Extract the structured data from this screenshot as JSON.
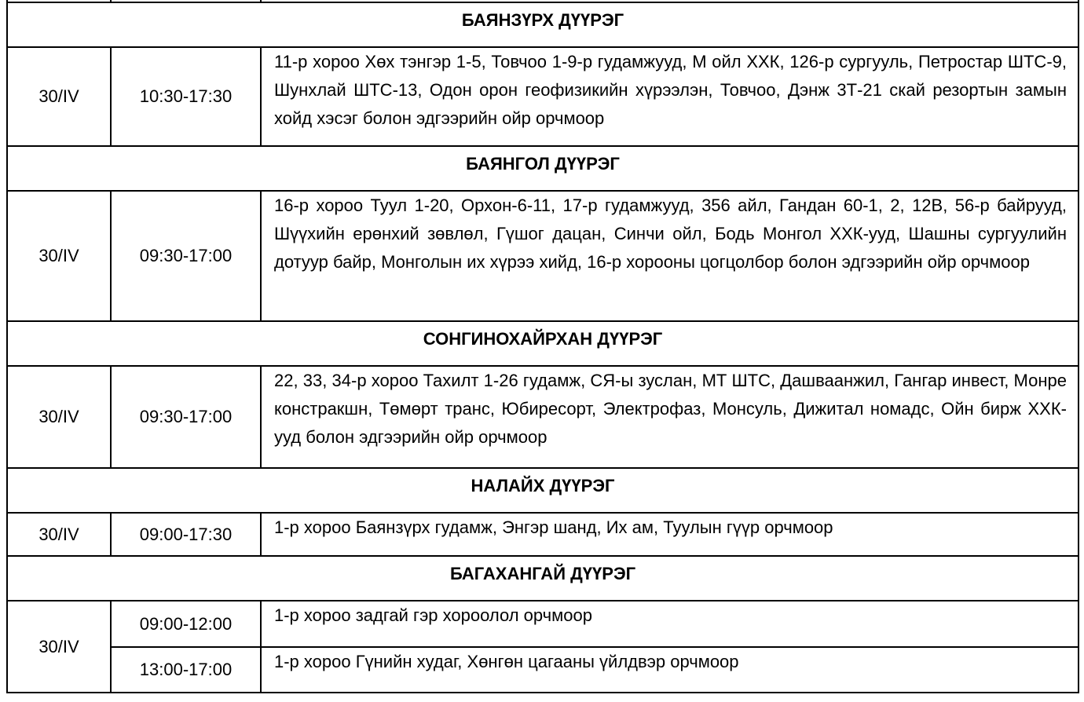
{
  "sections": [
    {
      "district": "БАЯНЗҮРХ ДҮҮРЭГ",
      "rows": [
        {
          "date": "30/IV",
          "time": "10:30-17:30",
          "height": 126,
          "desc": "11-р хороо Хөх тэнгэр 1-5, Товчоо 1-9-р гудамжууд, М ойл ХХК, 126-р сургууль, Петростар ШТС-9, Шунхлай ШТС-13, Одон орон геофизикийн хүрээлэн, Товчоо, Дэнж 3Т-21 скай резортын замын хойд хэсэг болон эдгээрийн ойр орчмоор"
        }
      ]
    },
    {
      "district": "БАЯНГОЛ ДҮҮРЭГ",
      "rows": [
        {
          "date": "30/IV",
          "time": "09:30-17:00",
          "height": 166,
          "desc": "16-р хороо Туул 1-20, Орхон-6-11, 17-р гудамжууд, 356 айл, Гандан 60-1, 2, 12В, 56-р байрууд, Шүүхийн ерөнхий зөвлөл, Гүшог дацан, Синчи ойл, Бодь Монгол ХХК-ууд, Шашны сургуулийн дотуур байр, Монголын их хүрээ хийд, 16-р хорооны цогцолбор болон эдгээрийн ойр орчмоор"
        }
      ]
    },
    {
      "district": "СОНГИНОХАЙРХАН ДҮҮРЭГ",
      "rows": [
        {
          "date": "30/IV",
          "time": "09:30-17:00",
          "height": 130,
          "desc": "22, 33, 34-р хороо Тахилт 1-26 гудамж, СЯ-ы зуслан, МТ ШТС, Дашваанжил, Гангар инвест, Монре констракшн, Төмөрт транс, Юбиресорт, Электрофаз, Монсуль, Дижитал номадс, Ойн бирж ХХК-ууд болон эдгээрийн ойр орчмоор"
        }
      ]
    },
    {
      "district": "НАЛАЙХ ДҮҮРЭГ",
      "rows": [
        {
          "date": "30/IV",
          "time": "09:00-17:30",
          "height": 55,
          "desc": "1-р хороо Баянзүрх гудамж, Энгэр шанд, Их ам, Туулын гүүр орчмоор"
        }
      ]
    },
    {
      "district": "БАГАХАНГАЙ ДҮҮРЭГ",
      "rows": [
        {
          "date": "30/IV",
          "time": "09:00-12:00",
          "height": 59,
          "desc": "1-р хороо задгай гэр хороолол орчмоор"
        },
        {
          "date": "",
          "time": "13:00-17:00",
          "height": 58,
          "desc": "1-р хороо Гүнийн худаг, Хөнгөн цагааны үйлдвэр орчмоор"
        }
      ]
    }
  ]
}
